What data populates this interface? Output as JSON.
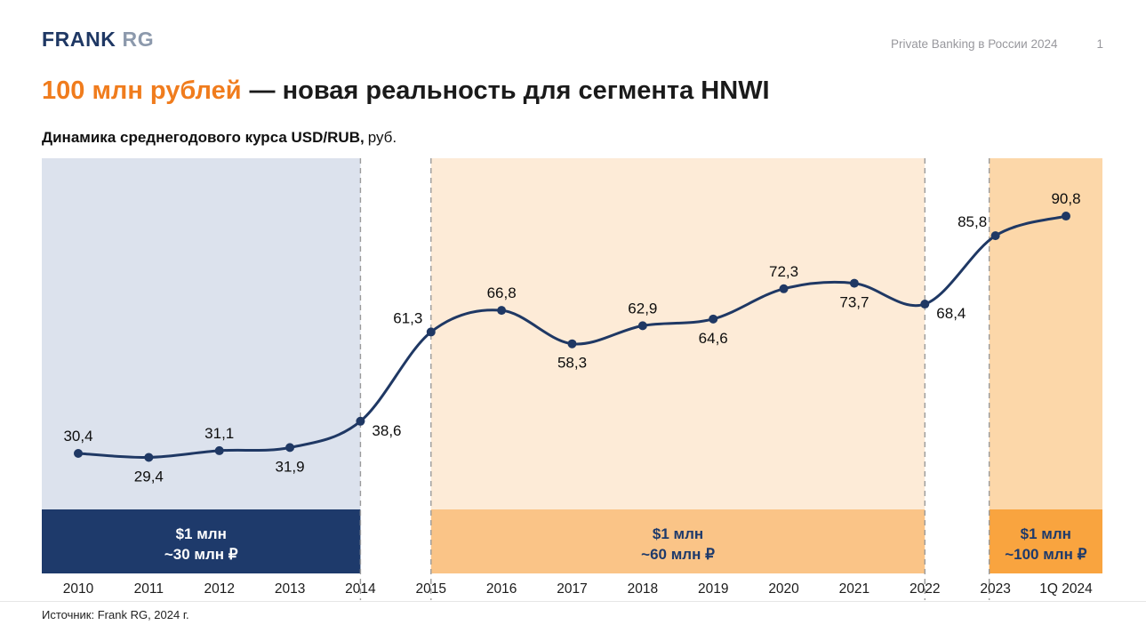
{
  "header": {
    "logo_frank": "FRANK",
    "logo_rg": "RG",
    "meta": "Private Banking в России 2024",
    "page_number": "1"
  },
  "title": {
    "highlight": "100 млн рублей",
    "rest": "— новая реальность для сегмента HNWI"
  },
  "subtitle": {
    "bold": "Динамика среднегодового курса USD/RUB,",
    "normal": "руб."
  },
  "footer": {
    "source": "Источник: Frank RG, 2024 г."
  },
  "chart_data": {
    "type": "line",
    "title": "Динамика среднегодового курса USD/RUB, руб.",
    "categories": [
      "2010",
      "2011",
      "2012",
      "2013",
      "2014",
      "2015",
      "2016",
      "2017",
      "2018",
      "2019",
      "2020",
      "2021",
      "2022",
      "2023",
      "1Q 2024"
    ],
    "values": [
      30.4,
      29.4,
      31.1,
      31.9,
      38.6,
      61.3,
      66.8,
      58.3,
      62.9,
      64.6,
      72.3,
      73.7,
      68.4,
      85.8,
      90.8
    ],
    "value_labels": [
      "30,4",
      "29,4",
      "31,1",
      "31,9",
      "38,6",
      "61,3",
      "66,8",
      "58,3",
      "62,9",
      "64,6",
      "72,3",
      "73,7",
      "68,4",
      "85,8",
      "90,8"
    ],
    "label_positions": [
      "above",
      "below",
      "above",
      "below",
      "right",
      "above-left",
      "above",
      "below",
      "above",
      "below",
      "above",
      "below",
      "right",
      "above-left",
      "above"
    ],
    "ylim": [
      20,
      100
    ],
    "grid": false,
    "line_color": "#1f3864",
    "point_color": "#1f3864",
    "dashed_divider_color": "#9b9b9b",
    "zones": [
      {
        "from": "2010",
        "to": "2014",
        "label_line1": "$1 млн",
        "label_line2": "~30 млн ₽",
        "area_color": "#dce2ed",
        "band_color": "#1e3a6b",
        "text_color": "#ffffff"
      },
      {
        "from": "2015",
        "to": "2022",
        "label_line1": "$1 млн",
        "label_line2": "~60 млн ₽",
        "area_color": "#fdebd7",
        "band_color": "#fac487",
        "text_color": "#1e3a6b"
      },
      {
        "from": "2023",
        "to": "1Q 2024",
        "label_line1": "$1 млн",
        "label_line2": "~100 млн ₽",
        "area_color": "#fcd7a9",
        "band_color": "#f9a43f",
        "text_color": "#1e3a6b"
      }
    ]
  }
}
